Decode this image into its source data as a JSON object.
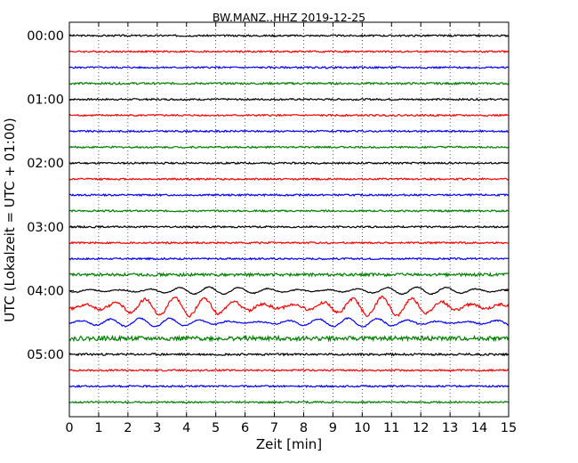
{
  "chart_data": {
    "type": "line",
    "title": "BW.MANZ..HHZ 2019-12-25",
    "xlabel": "Zeit  [min]",
    "ylabel": "UTC (Lokalzeit = UTC + 01:00)",
    "xlim": [
      0,
      15
    ],
    "x_ticks": [
      "0",
      "1",
      "2",
      "3",
      "4",
      "5",
      "6",
      "7",
      "8",
      "9",
      "10",
      "11",
      "12",
      "13",
      "14",
      "15"
    ],
    "y_ticks": [
      "00:00",
      "01:00",
      "02:00",
      "03:00",
      "04:00",
      "05:00"
    ],
    "grid": "vertical dotted",
    "trace_colors": [
      "#000000",
      "#ff0000",
      "#0000ff",
      "#008000"
    ],
    "series": [
      {
        "start": "00:00",
        "amplitude": 0.12
      },
      {
        "start": "00:15",
        "amplitude": 0.12
      },
      {
        "start": "00:30",
        "amplitude": 0.12
      },
      {
        "start": "00:45",
        "amplitude": 0.14
      },
      {
        "start": "01:00",
        "amplitude": 0.12
      },
      {
        "start": "01:15",
        "amplitude": 0.12
      },
      {
        "start": "01:30",
        "amplitude": 0.12
      },
      {
        "start": "01:45",
        "amplitude": 0.12
      },
      {
        "start": "02:00",
        "amplitude": 0.12
      },
      {
        "start": "02:15",
        "amplitude": 0.12
      },
      {
        "start": "02:30",
        "amplitude": 0.12
      },
      {
        "start": "02:45",
        "amplitude": 0.12
      },
      {
        "start": "03:00",
        "amplitude": 0.12
      },
      {
        "start": "03:15",
        "amplitude": 0.12
      },
      {
        "start": "03:30",
        "amplitude": 0.12
      },
      {
        "start": "03:45",
        "amplitude": 0.2
      },
      {
        "start": "04:00",
        "amplitude": 0.5
      },
      {
        "start": "04:15",
        "amplitude": 1.3
      },
      {
        "start": "04:30",
        "amplitude": 0.6
      },
      {
        "start": "04:45",
        "amplitude": 0.3
      },
      {
        "start": "05:00",
        "amplitude": 0.15
      },
      {
        "start": "05:15",
        "amplitude": 0.12
      },
      {
        "start": "05:30",
        "amplitude": 0.12
      },
      {
        "start": "05:45",
        "amplitude": 0.12
      }
    ]
  }
}
